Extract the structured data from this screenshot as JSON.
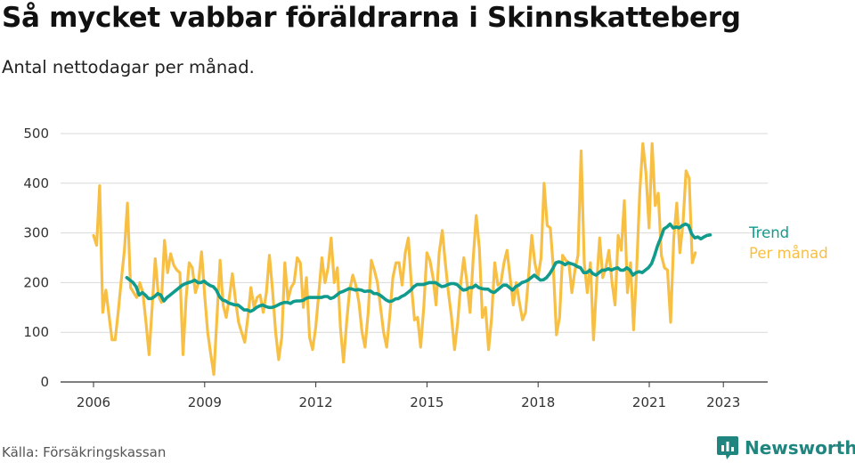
{
  "title": "Så mycket vabbar föräldrarna i Skinnskatteberg",
  "subtitle": "Antal nettodagar per månad.",
  "source": "Källa: Försäkringskassan",
  "brand": "Newsworthy",
  "colors": {
    "trend": "#119b8c",
    "monthly": "#f7c045",
    "grid": "#d9d9d9",
    "axis": "#333333",
    "brand": "#20857f"
  },
  "chart_data": {
    "type": "line",
    "ylim": [
      0,
      500
    ],
    "yticks": [
      0,
      100,
      200,
      300,
      400,
      500
    ],
    "xlim": [
      2006.0,
      2023.9
    ],
    "xticks": [
      2006,
      2009,
      2012,
      2015,
      2018,
      2021,
      2023
    ],
    "grid": true,
    "legend": "direct labels at line ends (right)",
    "series": [
      {
        "name": "Per månad",
        "start": 2006.0,
        "step": 0.0833,
        "values": [
          295,
          275,
          395,
          140,
          185,
          135,
          85,
          85,
          140,
          205,
          265,
          360,
          190,
          180,
          170,
          200,
          180,
          120,
          55,
          150,
          248,
          175,
          160,
          285,
          220,
          258,
          235,
          225,
          220,
          55,
          170,
          240,
          230,
          180,
          200,
          262,
          175,
          100,
          55,
          15,
          130,
          245,
          155,
          130,
          170,
          218,
          165,
          120,
          100,
          80,
          130,
          190,
          150,
          170,
          175,
          140,
          180,
          255,
          185,
          100,
          45,
          90,
          240,
          165,
          190,
          200,
          250,
          240,
          150,
          210,
          90,
          65,
          110,
          180,
          250,
          200,
          230,
          290,
          200,
          230,
          110,
          40,
          120,
          185,
          215,
          195,
          160,
          100,
          70,
          140,
          245,
          225,
          200,
          150,
          100,
          70,
          135,
          210,
          240,
          240,
          195,
          260,
          290,
          195,
          125,
          130,
          70,
          150,
          260,
          245,
          210,
          155,
          260,
          305,
          240,
          180,
          130,
          65,
          120,
          200,
          250,
          200,
          140,
          245,
          335,
          270,
          130,
          150,
          65,
          130,
          240,
          195,
          200,
          240,
          265,
          210,
          155,
          200,
          160,
          125,
          140,
          215,
          295,
          240,
          210,
          250,
          400,
          315,
          310,
          230,
          95,
          130,
          255,
          245,
          240,
          180,
          225,
          255,
          465,
          240,
          180,
          240,
          85,
          195,
          290,
          210,
          230,
          265,
          200,
          155,
          295,
          265,
          365,
          180,
          240,
          105,
          230,
          385,
          480,
          420,
          310,
          480,
          355,
          380,
          255,
          230,
          225,
          120,
          290,
          360,
          260,
          320,
          425,
          410,
          240,
          260
        ]
      },
      {
        "name": "Trend",
        "start": 2006.9,
        "step": 0.0833,
        "values": [
          210,
          205,
          200,
          192,
          175,
          180,
          175,
          168,
          168,
          172,
          178,
          175,
          163,
          170,
          175,
          180,
          185,
          190,
          195,
          198,
          200,
          202,
          205,
          200,
          200,
          203,
          198,
          194,
          192,
          185,
          172,
          165,
          163,
          159,
          157,
          155,
          155,
          150,
          145,
          145,
          142,
          145,
          150,
          153,
          155,
          152,
          150,
          150,
          152,
          155,
          158,
          160,
          160,
          158,
          162,
          163,
          163,
          164,
          168,
          170,
          170,
          170,
          170,
          170,
          172,
          172,
          168,
          170,
          175,
          180,
          182,
          185,
          188,
          187,
          185,
          186,
          185,
          182,
          183,
          183,
          178,
          178,
          175,
          170,
          165,
          162,
          163,
          167,
          168,
          172,
          175,
          180,
          185,
          192,
          196,
          196,
          196,
          198,
          200,
          200,
          200,
          196,
          192,
          193,
          196,
          198,
          198,
          196,
          190,
          185,
          186,
          190,
          190,
          195,
          190,
          188,
          187,
          187,
          182,
          180,
          185,
          190,
          195,
          195,
          190,
          185,
          192,
          195,
          200,
          202,
          205,
          210,
          215,
          210,
          205,
          206,
          210,
          218,
          228,
          240,
          242,
          240,
          236,
          240,
          238,
          236,
          232,
          230,
          220,
          220,
          225,
          218,
          215,
          220,
          225,
          225,
          228,
          225,
          228,
          230,
          225,
          225,
          230,
          225,
          215,
          220,
          222,
          220,
          225,
          230,
          238,
          255,
          275,
          290,
          308,
          312,
          318,
          310,
          312,
          310,
          315,
          318,
          315,
          298,
          290,
          292,
          288,
          292,
          295,
          296
        ]
      }
    ]
  }
}
